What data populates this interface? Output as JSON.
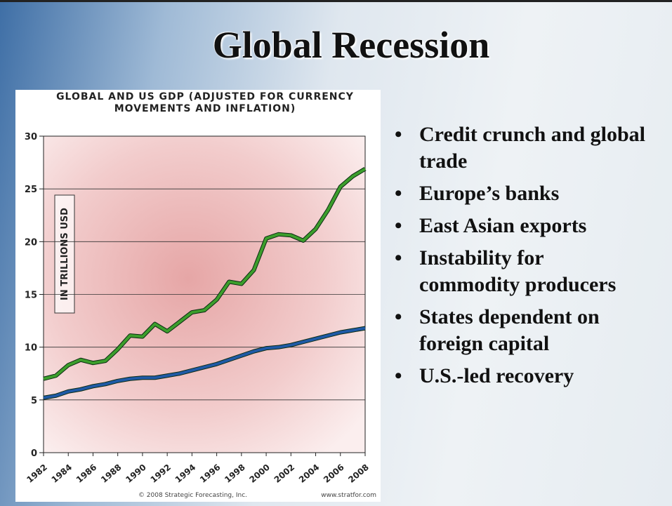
{
  "title": "Global Recession",
  "bullets": [
    "Credit crunch and global trade",
    "Europe’s banks",
    "East Asian exports",
    "Instability for commodity producers",
    "States dependent on foreign capital",
    "U.S.-led recovery"
  ],
  "chart_data": {
    "type": "line",
    "title": "GLOBAL AND US GDP (ADJUSTED FOR CURRENCY MOVEMENTS AND INFLATION)",
    "y_label": "IN TRILLIONS USD",
    "credit": "© 2008 Strategic Forecasting, Inc.",
    "website": "www.stratfor.com",
    "x": [
      1982,
      1983,
      1984,
      1985,
      1986,
      1987,
      1988,
      1989,
      1990,
      1991,
      1992,
      1993,
      1994,
      1995,
      1996,
      1997,
      1998,
      1999,
      2000,
      2001,
      2002,
      2003,
      2004,
      2005,
      2006,
      2007,
      2008
    ],
    "series": [
      {
        "color": "#3c9e2c",
        "values": [
          7.0,
          7.3,
          8.3,
          8.8,
          8.5,
          8.7,
          9.8,
          11.1,
          11.0,
          12.2,
          11.5,
          12.4,
          13.3,
          13.5,
          14.5,
          16.2,
          16.0,
          17.3,
          20.3,
          20.7,
          20.6,
          20.1,
          21.2,
          23.0,
          25.2,
          26.2,
          26.9
        ]
      },
      {
        "color": "#1f5aa6",
        "values": [
          5.2,
          5.4,
          5.8,
          6.0,
          6.3,
          6.5,
          6.8,
          7.0,
          7.1,
          7.1,
          7.3,
          7.5,
          7.8,
          8.1,
          8.4,
          8.8,
          9.2,
          9.6,
          9.9,
          10.0,
          10.2,
          10.5,
          10.8,
          11.1,
          11.4,
          11.6,
          11.8
        ]
      }
    ],
    "xlim": [
      1982,
      2008
    ],
    "xticks": [
      1982,
      1984,
      1986,
      1988,
      1990,
      1992,
      1994,
      1996,
      1998,
      2000,
      2002,
      2004,
      2006,
      2008
    ],
    "ylim": [
      0,
      30
    ],
    "yticks": [
      0,
      5,
      10,
      15,
      20,
      25,
      30
    ],
    "grid": true
  }
}
